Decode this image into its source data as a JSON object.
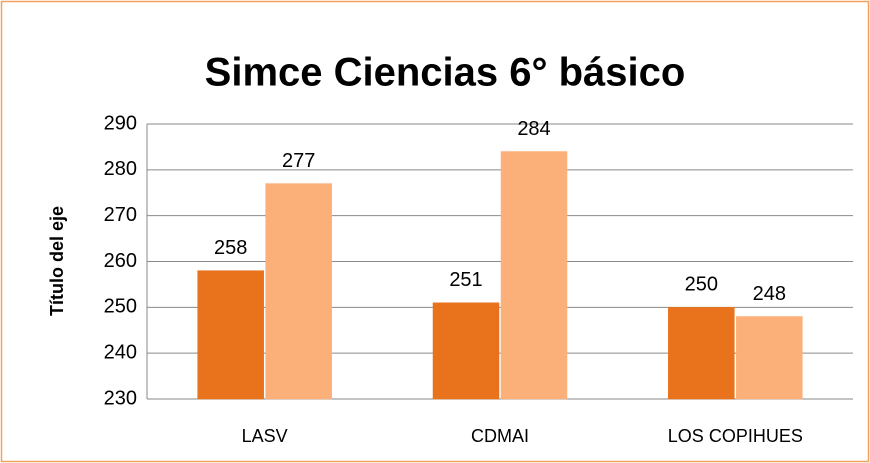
{
  "chart_data": {
    "type": "bar",
    "title": "Simce Ciencias 6° básico",
    "y_label": "Título del eje",
    "categories": [
      "LASV",
      "CDMAI",
      "LOS COPIHUES"
    ],
    "series": [
      {
        "color": "#e8731c",
        "values": [
          258,
          251,
          250
        ]
      },
      {
        "color": "#fbb07a",
        "values": [
          277,
          284,
          248
        ]
      }
    ],
    "ylim": [
      230,
      290
    ],
    "yticks": [
      230,
      240,
      250,
      260,
      270,
      280,
      290
    ],
    "grid": true
  }
}
